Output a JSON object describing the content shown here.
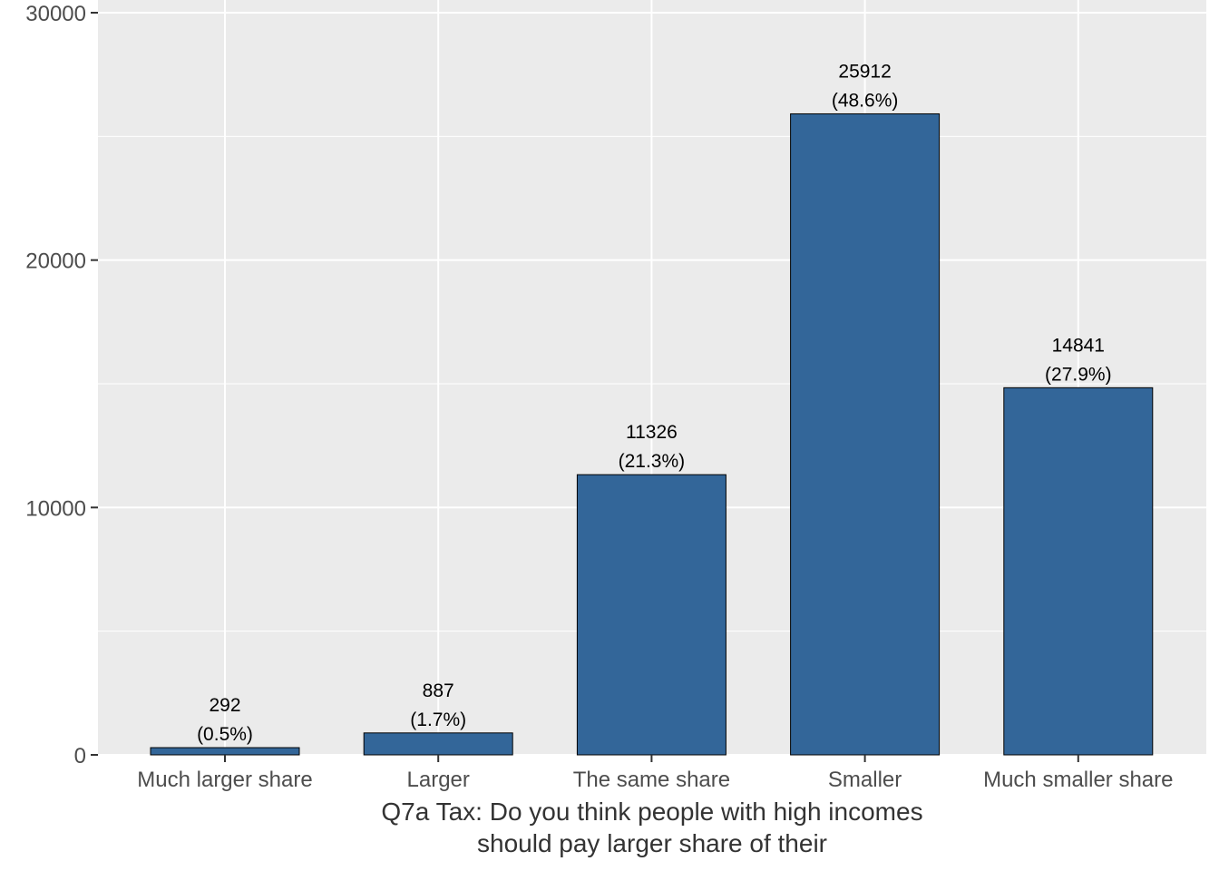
{
  "chart_data": {
    "type": "bar",
    "categories": [
      "Much larger share",
      "Larger",
      "The same share",
      "Smaller",
      "Much smaller share"
    ],
    "values": [
      292,
      887,
      11326,
      25912,
      14841
    ],
    "data_labels": [
      {
        "count": "292",
        "percent": "(0.5%)"
      },
      {
        "count": "887",
        "percent": "(1.7%)"
      },
      {
        "count": "11326",
        "percent": "(21.3%)"
      },
      {
        "count": "25912",
        "percent": "(48.6%)"
      },
      {
        "count": "14841",
        "percent": "(27.9%)"
      }
    ],
    "xlabel_lines": [
      "Q7a Tax: Do you think people with high incomes",
      "should pay larger share of their"
    ],
    "ylabel": "",
    "ylim": [
      0,
      30000
    ],
    "yticks": [
      "0",
      "10000",
      "20000",
      "30000"
    ],
    "ytick_values": [
      0,
      10000,
      20000,
      30000
    ],
    "grid": true,
    "legend": "none",
    "colors": {
      "bar": "#336699",
      "panel": "#ebebeb",
      "grid": "#ffffff"
    }
  }
}
